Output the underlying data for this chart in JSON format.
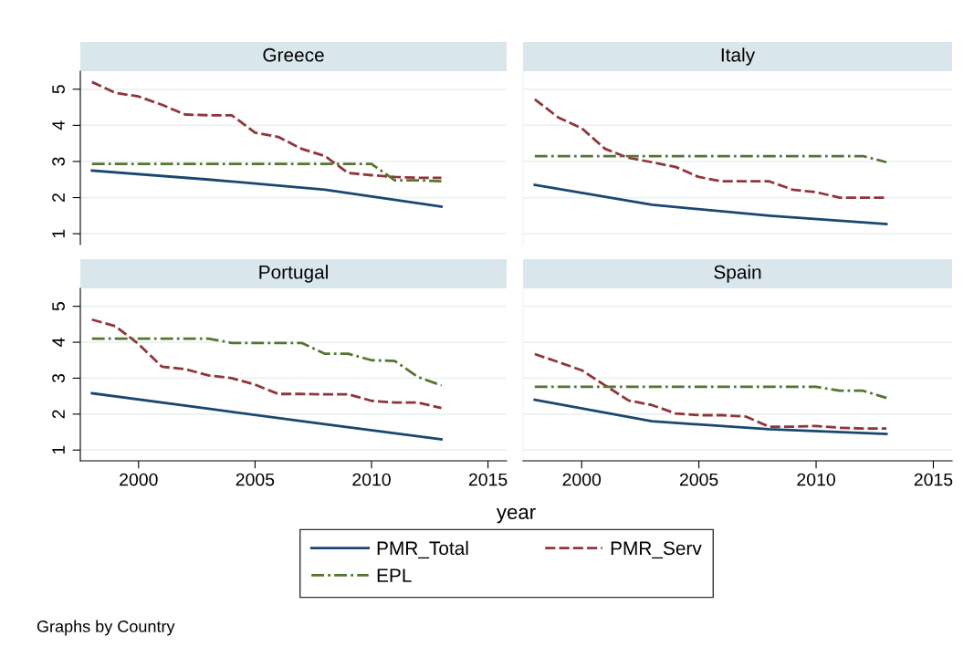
{
  "chart_data": [
    {
      "type": "line",
      "title": "Greece",
      "xlim": [
        1997.5,
        2015.8
      ],
      "ylim": [
        0.7,
        5.5
      ],
      "xticks": [
        2000,
        2005,
        2010,
        2015
      ],
      "yticks": [
        1,
        2,
        3,
        4,
        5
      ],
      "tick_labels": "y",
      "grid": "y",
      "series": [
        {
          "color": "#1a476f",
          "line_style": "solid",
          "x": [
            1998,
            2003,
            2008,
            2013
          ],
          "values": [
            2.75,
            2.5,
            2.22,
            1.75
          ]
        },
        {
          "color": "#90353b",
          "line_style": "dashed",
          "x": [
            1998,
            1999,
            2000,
            2001,
            2002,
            2003,
            2004,
            2005,
            2006,
            2007,
            2008,
            2009,
            2010,
            2011,
            2012,
            2013
          ],
          "values": [
            5.2,
            4.9,
            4.8,
            4.57,
            4.3,
            4.28,
            4.28,
            3.8,
            3.68,
            3.35,
            3.15,
            2.68,
            2.62,
            2.57,
            2.55,
            2.55
          ]
        },
        {
          "color": "#55752f",
          "line_style": "dashdot",
          "x": [
            1998,
            2010,
            2011,
            2012,
            2013
          ],
          "values": [
            2.93,
            2.93,
            2.48,
            2.48,
            2.45
          ]
        }
      ]
    },
    {
      "type": "line",
      "title": "Italy",
      "xlim": [
        1997.5,
        2015.8
      ],
      "ylim": [
        0.7,
        5.5
      ],
      "xticks": [
        2000,
        2005,
        2010,
        2015
      ],
      "yticks": [
        1,
        2,
        3,
        4,
        5
      ],
      "tick_labels": false,
      "grid": "y",
      "series": [
        {
          "color": "#1a476f",
          "line_style": "solid",
          "x": [
            1998,
            2003,
            2008,
            2013
          ],
          "values": [
            2.35,
            1.8,
            1.5,
            1.27
          ]
        },
        {
          "color": "#90353b",
          "line_style": "dashed",
          "x": [
            1998,
            1999,
            2000,
            2001,
            2002,
            2003,
            2004,
            2005,
            2006,
            2007,
            2008,
            2009,
            2010,
            2011,
            2012,
            2013
          ],
          "values": [
            4.72,
            4.22,
            3.92,
            3.35,
            3.1,
            2.98,
            2.85,
            2.57,
            2.45,
            2.45,
            2.45,
            2.22,
            2.15,
            2.0,
            2.0,
            2.0
          ]
        },
        {
          "color": "#55752f",
          "line_style": "dashdot",
          "x": [
            1998,
            2012,
            2013
          ],
          "values": [
            3.15,
            3.15,
            2.98
          ]
        }
      ]
    },
    {
      "type": "line",
      "title": "Portugal",
      "xlabel": "year",
      "xlim": [
        1997.5,
        2015.8
      ],
      "ylim": [
        0.7,
        5.5
      ],
      "xticks": [
        2000,
        2005,
        2010,
        2015
      ],
      "yticks": [
        1,
        2,
        3,
        4,
        5
      ],
      "grid": "y",
      "series": [
        {
          "color": "#1a476f",
          "line_style": "solid",
          "x": [
            1998,
            2003,
            2008,
            2013
          ],
          "values": [
            2.58,
            2.15,
            1.72,
            1.3
          ]
        },
        {
          "color": "#90353b",
          "line_style": "dashed",
          "x": [
            1998,
            1999,
            2000,
            2001,
            2002,
            2003,
            2004,
            2005,
            2006,
            2007,
            2008,
            2009,
            2010,
            2011,
            2012,
            2013
          ],
          "values": [
            4.63,
            4.45,
            3.95,
            3.32,
            3.25,
            3.08,
            3.0,
            2.82,
            2.56,
            2.56,
            2.55,
            2.55,
            2.37,
            2.32,
            2.32,
            2.17
          ]
        },
        {
          "color": "#55752f",
          "line_style": "dashdot",
          "x": [
            1998,
            2003,
            2004,
            2007,
            2008,
            2009,
            2010,
            2011,
            2012,
            2013
          ],
          "values": [
            4.1,
            4.1,
            3.98,
            3.98,
            3.68,
            3.68,
            3.5,
            3.48,
            3.03,
            2.8
          ]
        }
      ]
    },
    {
      "type": "line",
      "title": "Spain",
      "xlim": [
        1997.5,
        2015.8
      ],
      "ylim": [
        0.7,
        5.5
      ],
      "xticks": [
        2000,
        2005,
        2010,
        2015
      ],
      "yticks": [
        1,
        2,
        3,
        4,
        5
      ],
      "tick_labels": "x",
      "grid": "y",
      "legend": "bottom",
      "annotations": [
        "Graphs by Country"
      ],
      "series": [
        {
          "name": "PMR_Total",
          "color": "#1a476f",
          "line_style": "solid",
          "x": [
            1998,
            2003,
            2008,
            2013
          ],
          "values": [
            2.4,
            1.8,
            1.58,
            1.45
          ]
        },
        {
          "name": "PMR_Serv",
          "color": "#90353b",
          "line_style": "dashed",
          "x": [
            1998,
            1999,
            2000,
            2001,
            2002,
            2003,
            2004,
            2005,
            2006,
            2007,
            2008,
            2009,
            2010,
            2011,
            2012,
            2013
          ],
          "values": [
            3.67,
            3.45,
            3.22,
            2.8,
            2.38,
            2.25,
            2.02,
            1.97,
            1.97,
            1.93,
            1.65,
            1.65,
            1.67,
            1.62,
            1.6,
            1.6
          ]
        },
        {
          "name": "EPL",
          "color": "#55752f",
          "line_style": "dashdot",
          "x": [
            1998,
            2010,
            2011,
            2012,
            2013
          ],
          "values": [
            2.76,
            2.76,
            2.65,
            2.65,
            2.45
          ]
        }
      ]
    }
  ]
}
